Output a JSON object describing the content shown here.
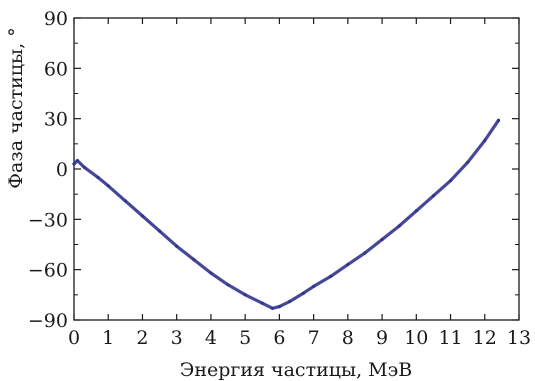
{
  "chart_data": {
    "type": "line",
    "xlabel": "Энергия частицы, МэВ",
    "ylabel": "Фаза частицы, °",
    "xlim": [
      0,
      13
    ],
    "ylim": [
      -90,
      90
    ],
    "x_ticks": [
      0,
      1,
      2,
      3,
      4,
      5,
      6,
      7,
      8,
      9,
      10,
      11,
      12,
      13
    ],
    "x_tick_labels": [
      "0",
      "1",
      "2",
      "3",
      "4",
      "5",
      "6",
      "7",
      "8",
      "9",
      "10",
      "11",
      "12",
      "13"
    ],
    "y_ticks": [
      -90,
      -60,
      -30,
      0,
      30,
      60,
      90
    ],
    "y_tick_labels": [
      "−90",
      "−60",
      "−30",
      "0",
      "30",
      "60",
      "90"
    ],
    "grid": false,
    "line_color": "#33338f",
    "series": [
      {
        "x": [
          0.0,
          0.1,
          0.3,
          0.7,
          1.0,
          1.5,
          2.0,
          2.5,
          3.0,
          3.5,
          4.0,
          4.5,
          5.0,
          5.5,
          5.8,
          6.0,
          6.3,
          6.7,
          7.0,
          7.5,
          8.0,
          8.5,
          9.0,
          9.5,
          10.0,
          10.5,
          11.0,
          11.5,
          12.0,
          12.4
        ],
        "y": [
          3,
          5,
          1,
          -5,
          -10,
          -19,
          -28,
          -37,
          -46,
          -54,
          -62,
          -69,
          -75,
          -80,
          -83,
          -82,
          -79,
          -74,
          -70,
          -64,
          -57,
          -50,
          -42,
          -34,
          -25,
          -16,
          -7,
          4,
          17,
          29
        ]
      }
    ]
  }
}
